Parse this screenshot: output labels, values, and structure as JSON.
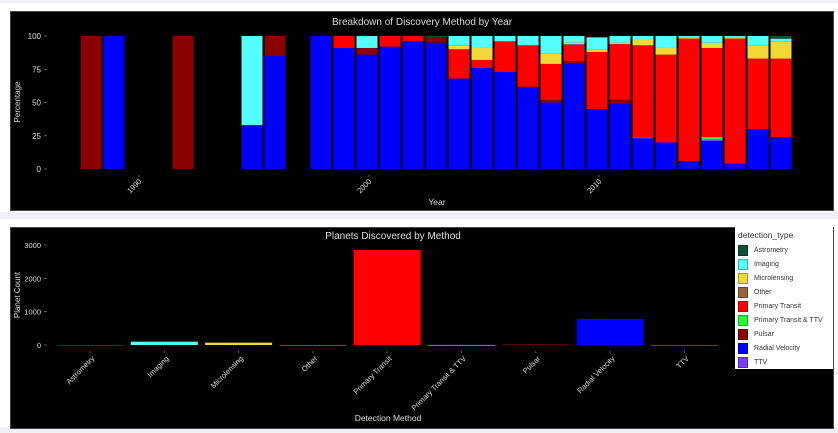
{
  "colors": {
    "Astrometry": "#0d5235",
    "Imaging": "#55ffff",
    "Microlensing": "#f0d836",
    "Other": "#9a6238",
    "Primary Transit": "#ff0000",
    "Primary Transit & TTV": "#22ff33",
    "Pulsar": "#8b0000",
    "Radial Velocity": "#0000ff",
    "TTV": "#7b3cff"
  },
  "legend": {
    "title": "detection_type",
    "items": [
      "Astrometry",
      "Imaging",
      "Microlensing",
      "Other",
      "Primary Transit",
      "Primary Transit & TTV",
      "Pulsar",
      "Radial Velocity",
      "TTV"
    ]
  },
  "chart_data": [
    {
      "type": "bar",
      "stacked": true,
      "title": "Breakdown of Discovery Method by Year",
      "xlabel": "Year",
      "ylabel": "Percentage",
      "ylim": [
        0,
        100
      ],
      "yticks": [
        0,
        25,
        50,
        75,
        100
      ],
      "xticks": [
        1990,
        2000,
        2010
      ],
      "stack_order": [
        "Radial Velocity",
        "TTV",
        "Primary Transit & TTV",
        "Pulsar",
        "Primary Transit",
        "Other",
        "Microlensing",
        "Imaging",
        "Astrometry"
      ],
      "bars": [
        {
          "year": 1988,
          "segments": {
            "Pulsar": 100
          }
        },
        {
          "year": 1989,
          "segments": {
            "Radial Velocity": 100
          }
        },
        {
          "year": 1992,
          "segments": {
            "Pulsar": 100
          }
        },
        {
          "year": 1995,
          "segments": {
            "Radial Velocity": 33,
            "Imaging": 67
          }
        },
        {
          "year": 1996,
          "segments": {
            "Radial Velocity": 85,
            "Pulsar": 15
          }
        },
        {
          "year": 1998,
          "segments": {
            "Radial Velocity": 100
          }
        },
        {
          "year": 1999,
          "segments": {
            "Radial Velocity": 91,
            "Primary Transit": 9
          }
        },
        {
          "year": 2000,
          "segments": {
            "Radial Velocity": 86,
            "Pulsar": 5,
            "Imaging": 9
          }
        },
        {
          "year": 2001,
          "segments": {
            "Radial Velocity": 92,
            "Primary Transit": 8
          }
        },
        {
          "year": 2002,
          "segments": {
            "Radial Velocity": 96,
            "Primary Transit": 4
          }
        },
        {
          "year": 2003,
          "segments": {
            "Radial Velocity": 95,
            "Pulsar": 4,
            "Astrometry": 1
          }
        },
        {
          "year": 2004,
          "segments": {
            "Radial Velocity": 68,
            "Primary Transit": 22,
            "Microlensing": 3,
            "Imaging": 7
          }
        },
        {
          "year": 2005,
          "segments": {
            "Radial Velocity": 76,
            "Primary Transit": 6,
            "Microlensing": 9,
            "Imaging": 9
          }
        },
        {
          "year": 2006,
          "segments": {
            "Radial Velocity": 73,
            "Primary Transit": 23,
            "Imaging": 4
          }
        },
        {
          "year": 2007,
          "segments": {
            "Radial Velocity": 61,
            "Pulsar": 1,
            "Primary Transit": 31,
            "Imaging": 7
          }
        },
        {
          "year": 2008,
          "segments": {
            "Radial Velocity": 50,
            "Pulsar": 2,
            "Primary Transit": 27,
            "Microlensing": 8,
            "Imaging": 13
          }
        },
        {
          "year": 2009,
          "segments": {
            "Radial Velocity": 79,
            "Pulsar": 2,
            "Primary Transit": 12,
            "Other": 1,
            "Microlensing": 1,
            "Imaging": 5
          }
        },
        {
          "year": 2010,
          "segments": {
            "Radial Velocity": 45,
            "Primary Transit": 43,
            "Microlensing": 2,
            "Imaging": 9
          }
        },
        {
          "year": 2011,
          "segments": {
            "Radial Velocity": 49,
            "Pulsar": 3,
            "Primary Transit": 42,
            "Microlensing": 1,
            "Imaging": 5
          }
        },
        {
          "year": 2012,
          "segments": {
            "TTV": 1,
            "Radial Velocity": 23,
            "Primary Transit": 69,
            "Microlensing": 4,
            "Imaging": 3
          }
        },
        {
          "year": 2013,
          "segments": {
            "Radial Velocity": 20,
            "Primary Transit": 66,
            "Microlensing": 5,
            "Imaging": 9
          }
        },
        {
          "year": 2014,
          "segments": {
            "Radial Velocity": 6,
            "Primary Transit": 92,
            "Microlensing": 1,
            "Imaging": 1
          }
        },
        {
          "year": 2015,
          "segments": {
            "TTV": 1,
            "Radial Velocity": 21,
            "Primary Transit & TTV": 2,
            "Primary Transit": 67,
            "Microlensing": 4,
            "Imaging": 5
          }
        },
        {
          "year": 2016,
          "segments": {
            "Radial Velocity": 4,
            "Primary Transit": 94,
            "Microlensing": 1,
            "Imaging": 1
          }
        },
        {
          "year": 2017,
          "segments": {
            "Radial Velocity": 30,
            "Primary Transit": 53,
            "Microlensing": 10,
            "Imaging": 7
          }
        },
        {
          "year": 2018,
          "segments": {
            "Radial Velocity": 24,
            "Primary Transit": 59,
            "Microlensing": 13,
            "Imaging": 2,
            "Astrometry": 2
          }
        }
      ]
    },
    {
      "type": "bar",
      "title": "Planets Discovered by Method",
      "xlabel": "Detection Method",
      "ylabel": "Planet Count",
      "ylim": [
        0,
        3300
      ],
      "yticks": [
        0,
        1000,
        2000,
        3000
      ],
      "categories": [
        "Astrometry",
        "Imaging",
        "Microlensing",
        "Other",
        "Primary Transit",
        "Primary Transit & TTV",
        "Pulsar",
        "Radial Velocity",
        "TTV"
      ],
      "values": [
        1,
        100,
        70,
        2,
        2850,
        3,
        20,
        780,
        2
      ]
    }
  ]
}
